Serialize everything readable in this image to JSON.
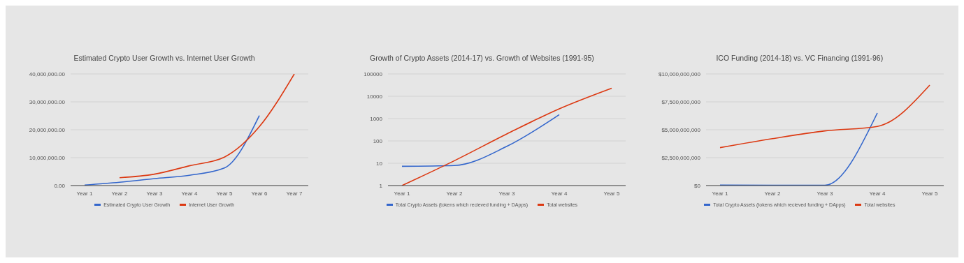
{
  "chart_data": [
    {
      "type": "line",
      "title": "Estimated Crypto User Growth vs. Internet User Growth",
      "categories": [
        "Year 1",
        "Year 2",
        "Year 3",
        "Year 4",
        "Year 5",
        "Year 6",
        "Year 7"
      ],
      "ylim": [
        0,
        40000000
      ],
      "yticks": [
        {
          "value": 0,
          "label": "0.00"
        },
        {
          "value": 10000000,
          "label": "10,000,000.00"
        },
        {
          "value": 20000000,
          "label": "20,000,000.00"
        },
        {
          "value": 30000000,
          "label": "30,000,000.00"
        },
        {
          "value": 40000000,
          "label": "40,000,000.00"
        }
      ],
      "grid": "y",
      "legend": "bottom",
      "marker": "none",
      "line_style": "solid",
      "series": [
        {
          "name": "Estimated Crypto User Growth",
          "color": "#3366cc",
          "values": [
            200000,
            1200000,
            2500000,
            3700000,
            6300000,
            25100000,
            null
          ]
        },
        {
          "name": "Internet User Growth",
          "color": "#dc3912",
          "values": [
            null,
            2800000,
            4100000,
            7100000,
            10200000,
            21100000,
            40000000
          ]
        }
      ]
    },
    {
      "type": "line",
      "title": "Growth of Crypto Assets (2014-17) vs. Growth of Websites (1991-95)",
      "categories": [
        "Year 1",
        "Year 2",
        "Year 3",
        "Year 4",
        "Year 5"
      ],
      "ylim": [
        1,
        100000
      ],
      "yticks": [
        1,
        10,
        100,
        1000,
        10000,
        100000
      ],
      "log": "y",
      "grid": "y",
      "legend": "bottom",
      "marker": "none",
      "line_style": "solid",
      "series": [
        {
          "name": "Total Crypto Assets (tokens which recieved funding + DApps)",
          "color": "#3366cc",
          "values": [
            7.3,
            7.9,
            57,
            1500,
            null
          ]
        },
        {
          "name": "Total websites",
          "color": "#dc3912",
          "values": [
            1,
            13,
            205,
            2750,
            23000
          ]
        }
      ]
    },
    {
      "type": "line",
      "title": "ICO Funding (2014-18) vs. VC Financing (1991-96)",
      "categories": [
        "Year 1",
        "Year 2",
        "Year 3",
        "Year 4",
        "Year 5"
      ],
      "ylim": [
        0,
        10000000000
      ],
      "yticks": [
        {
          "value": 0,
          "label": "$0"
        },
        {
          "value": 2500000000,
          "label": "$2,500,000,000"
        },
        {
          "value": 5000000000,
          "label": "$5,000,000,000"
        },
        {
          "value": 7500000000,
          "label": "$7,500,000,000"
        },
        {
          "value": 10000000000,
          "label": "$10,000,000,000"
        }
      ],
      "grid": "y",
      "legend": "bottom",
      "marker": "none",
      "line_style": "solid",
      "series": [
        {
          "name": "Total Crypto Assets (tokens which recieved funding + DApps)",
          "color": "#3366cc",
          "values": [
            50000000,
            30000000,
            30000000,
            6500000000,
            null
          ]
        },
        {
          "name": "Total websites",
          "color": "#dc3912",
          "values": [
            3400000000,
            4200000000,
            4900000000,
            5300000000,
            9000000000
          ]
        }
      ]
    }
  ]
}
